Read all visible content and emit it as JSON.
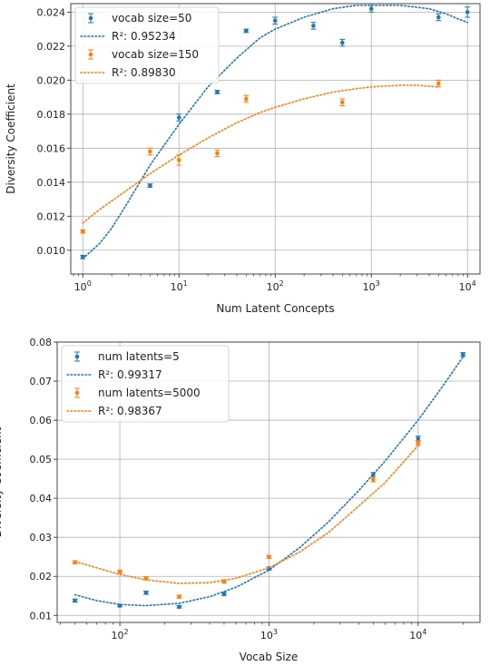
{
  "chart_data": [
    {
      "type": "scatter",
      "xscale": "log",
      "xlabel": "Num Latent Concepts",
      "ylabel": "Diversity Coefficient",
      "xlim": [
        0.75,
        13500
      ],
      "ylim": [
        0.0086,
        0.0245
      ],
      "xticks": [
        {
          "value": 1,
          "base": "10",
          "exp": "0"
        },
        {
          "value": 10,
          "base": "10",
          "exp": "1"
        },
        {
          "value": 100,
          "base": "10",
          "exp": "2"
        },
        {
          "value": 1000,
          "base": "10",
          "exp": "3"
        },
        {
          "value": 10000,
          "base": "10",
          "exp": "4"
        }
      ],
      "yticks": [
        {
          "value": 0.01,
          "label": "0.010"
        },
        {
          "value": 0.012,
          "label": "0.012"
        },
        {
          "value": 0.014,
          "label": "0.014"
        },
        {
          "value": 0.016,
          "label": "0.016"
        },
        {
          "value": 0.018,
          "label": "0.018"
        },
        {
          "value": 0.02,
          "label": "0.020"
        },
        {
          "value": 0.022,
          "label": "0.022"
        },
        {
          "value": 0.024,
          "label": "0.024"
        }
      ],
      "grid": true,
      "legend_position": "top-left",
      "series": [
        {
          "name": "vocab size=50",
          "fit_label": "R²: 0.95234",
          "color": "#1f77b4",
          "x": [
            1,
            5,
            10,
            25,
            50,
            100,
            250,
            500,
            1000,
            5000,
            10000
          ],
          "y": [
            0.0096,
            0.0138,
            0.0178,
            0.0193,
            0.0229,
            0.0235,
            0.0232,
            0.0222,
            0.0242,
            0.0237,
            0.024
          ],
          "err": [
            0.0001,
            0.0001,
            0.0002,
            0.0001,
            0.0001,
            0.0002,
            0.0002,
            0.0002,
            0.0002,
            0.0002,
            0.0003
          ],
          "fit": [
            [
              1,
              0.0095
            ],
            [
              1.5,
              0.0104
            ],
            [
              2,
              0.0113
            ],
            [
              3,
              0.0129
            ],
            [
              5,
              0.015
            ],
            [
              10,
              0.0174
            ],
            [
              20,
              0.0196
            ],
            [
              40,
              0.0213
            ],
            [
              70,
              0.0225
            ],
            [
              100,
              0.023
            ],
            [
              200,
              0.0237
            ],
            [
              400,
              0.0242
            ],
            [
              700,
              0.0244
            ],
            [
              1000,
              0.0244
            ],
            [
              2000,
              0.0244
            ],
            [
              4000,
              0.0242
            ],
            [
              6000,
              0.0239
            ],
            [
              8000,
              0.0236
            ],
            [
              10000,
              0.0234
            ]
          ]
        },
        {
          "name": "vocab size=150",
          "fit_label": "R²: 0.89830",
          "color": "#ff7f0e",
          "x": [
            1,
            5,
            10,
            25,
            50,
            500,
            5000
          ],
          "y": [
            0.0111,
            0.0158,
            0.0153,
            0.0157,
            0.0189,
            0.0187,
            0.0198
          ],
          "err": [
            0.0001,
            0.0002,
            0.0003,
            0.0002,
            0.0002,
            0.0002,
            0.0002
          ],
          "fit": [
            [
              1,
              0.0116
            ],
            [
              1.5,
              0.0124
            ],
            [
              2,
              0.0129
            ],
            [
              3,
              0.0136
            ],
            [
              5,
              0.0145
            ],
            [
              10,
              0.0156
            ],
            [
              20,
              0.0166
            ],
            [
              40,
              0.0175
            ],
            [
              70,
              0.0181
            ],
            [
              100,
              0.0184
            ],
            [
              200,
              0.0189
            ],
            [
              400,
              0.0193
            ],
            [
              700,
              0.0195
            ],
            [
              1000,
              0.0196
            ],
            [
              2000,
              0.0197
            ],
            [
              3000,
              0.0197
            ],
            [
              5000,
              0.0196
            ]
          ]
        }
      ]
    },
    {
      "type": "scatter",
      "xscale": "log",
      "xlabel": "Vocab Size",
      "ylabel": "Diversity Coefficient",
      "xlim": [
        38,
        26000
      ],
      "ylim": [
        0.0082,
        0.08
      ],
      "xticks": [
        {
          "value": 100,
          "base": "10",
          "exp": "2"
        },
        {
          "value": 1000,
          "base": "10",
          "exp": "3"
        },
        {
          "value": 10000,
          "base": "10",
          "exp": "4"
        }
      ],
      "yticks": [
        {
          "value": 0.01,
          "label": "0.01"
        },
        {
          "value": 0.02,
          "label": "0.02"
        },
        {
          "value": 0.03,
          "label": "0.03"
        },
        {
          "value": 0.04,
          "label": "0.04"
        },
        {
          "value": 0.05,
          "label": "0.05"
        },
        {
          "value": 0.06,
          "label": "0.06"
        },
        {
          "value": 0.07,
          "label": "0.07"
        },
        {
          "value": 0.08,
          "label": "0.08"
        }
      ],
      "grid": true,
      "legend_position": "top-left",
      "series": [
        {
          "name": "num latents=5",
          "fit_label": "R²: 0.99317",
          "color": "#1f77b4",
          "x": [
            50,
            100,
            150,
            250,
            500,
            1000,
            5000,
            10000,
            20000
          ],
          "y": [
            0.0138,
            0.0125,
            0.0158,
            0.0122,
            0.0155,
            0.022,
            0.046,
            0.0553,
            0.0768
          ],
          "err": [
            0.0004,
            0.0003,
            0.0004,
            0.0003,
            0.0004,
            0.0004,
            0.0006,
            0.0006,
            0.0005
          ],
          "fit": [
            [
              50,
              0.0153
            ],
            [
              70,
              0.0138
            ],
            [
              100,
              0.0128
            ],
            [
              150,
              0.0125
            ],
            [
              250,
              0.0131
            ],
            [
              400,
              0.0148
            ],
            [
              600,
              0.0172
            ],
            [
              1000,
              0.0216
            ],
            [
              1600,
              0.0273
            ],
            [
              2500,
              0.0339
            ],
            [
              4000,
              0.042
            ],
            [
              6000,
              0.0495
            ],
            [
              10000,
              0.06
            ],
            [
              15000,
              0.0693
            ],
            [
              20000,
              0.0762
            ]
          ]
        },
        {
          "name": "num latents=5000",
          "fit_label": "R²: 0.98367",
          "color": "#ff7f0e",
          "x": [
            50,
            100,
            150,
            250,
            500,
            1000,
            5000,
            10000
          ],
          "y": [
            0.0236,
            0.0212,
            0.0195,
            0.0148,
            0.0187,
            0.025,
            0.0448,
            0.0542
          ],
          "err": [
            0.0004,
            0.0004,
            0.0004,
            0.0004,
            0.0004,
            0.0004,
            0.0006,
            0.0006
          ],
          "fit": [
            [
              50,
              0.0238
            ],
            [
              70,
              0.0222
            ],
            [
              100,
              0.0205
            ],
            [
              150,
              0.0191
            ],
            [
              250,
              0.0182
            ],
            [
              400,
              0.0184
            ],
            [
              600,
              0.0195
            ],
            [
              1000,
              0.0222
            ],
            [
              1600,
              0.0262
            ],
            [
              2500,
              0.0312
            ],
            [
              4000,
              0.038
            ],
            [
              6000,
              0.044
            ],
            [
              10000,
              0.0535
            ]
          ]
        }
      ]
    }
  ]
}
